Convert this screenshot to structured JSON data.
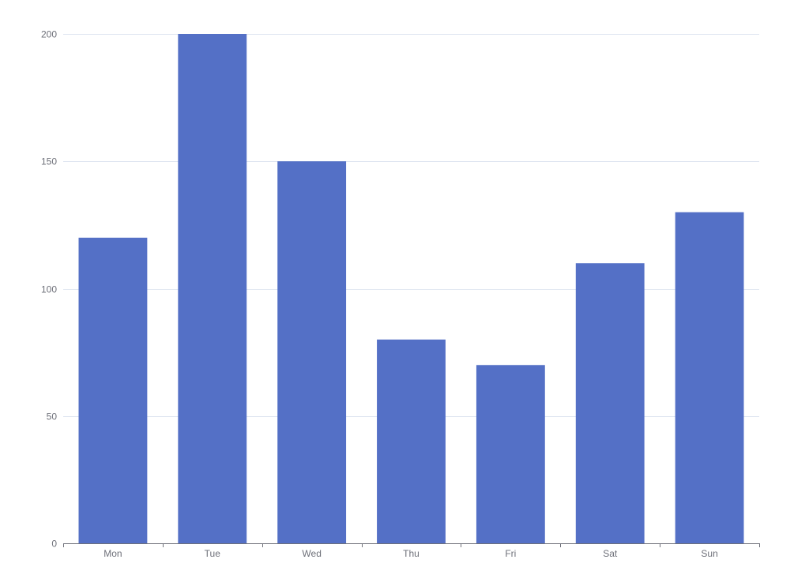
{
  "chart_data": {
    "type": "bar",
    "categories": [
      "Mon",
      "Tue",
      "Wed",
      "Thu",
      "Fri",
      "Sat",
      "Sun"
    ],
    "values": [
      120,
      200,
      150,
      80,
      70,
      110,
      130
    ],
    "title": "",
    "xlabel": "",
    "ylabel": "",
    "ylim": [
      0,
      200
    ],
    "yticks": [
      0,
      50,
      100,
      150,
      200
    ],
    "grid": true,
    "colors": {
      "bar": "#5470c6",
      "grid": "#e0e6f1",
      "axis": "#6e7079"
    }
  }
}
